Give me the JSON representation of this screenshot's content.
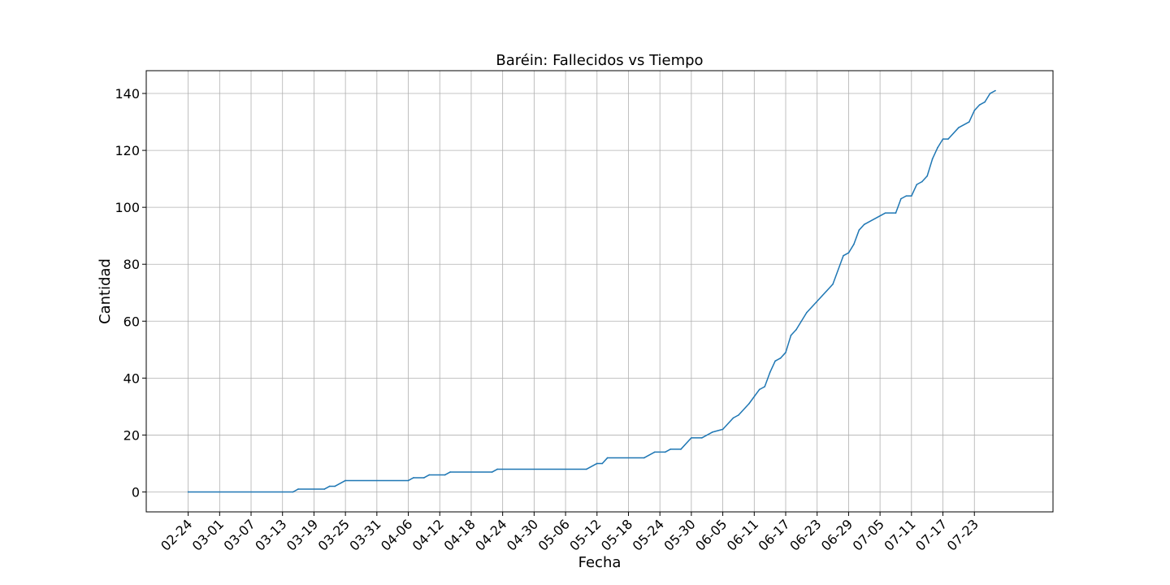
{
  "chart_data": {
    "type": "line",
    "title": "Baréin: Fallecidos vs Tiempo",
    "xlabel": "Fecha",
    "ylabel": "Cantidad",
    "grid": true,
    "xlim": [
      "2020-02-16",
      "2020-08-07"
    ],
    "ylim": [
      -7,
      148
    ],
    "x_ticks": [
      "02-24",
      "03-01",
      "03-07",
      "03-13",
      "03-19",
      "03-25",
      "03-31",
      "04-06",
      "04-12",
      "04-18",
      "04-24",
      "04-30",
      "05-06",
      "05-12",
      "05-18",
      "05-24",
      "05-30",
      "06-05",
      "06-11",
      "06-17",
      "06-23",
      "06-29",
      "07-05",
      "07-11",
      "07-17",
      "07-23"
    ],
    "x_tick_dates": [
      "2020-02-24",
      "2020-03-01",
      "2020-03-07",
      "2020-03-13",
      "2020-03-19",
      "2020-03-25",
      "2020-03-31",
      "2020-04-06",
      "2020-04-12",
      "2020-04-18",
      "2020-04-24",
      "2020-04-30",
      "2020-05-06",
      "2020-05-12",
      "2020-05-18",
      "2020-05-24",
      "2020-05-30",
      "2020-06-05",
      "2020-06-11",
      "2020-06-17",
      "2020-06-23",
      "2020-06-29",
      "2020-07-05",
      "2020-07-11",
      "2020-07-17",
      "2020-07-23"
    ],
    "y_ticks": [
      0,
      20,
      40,
      60,
      80,
      100,
      120,
      140
    ],
    "series": [
      {
        "color": "#1f77b4",
        "points": [
          [
            "2020-02-24",
            0
          ],
          [
            "2020-03-15",
            0
          ],
          [
            "2020-03-16",
            1
          ],
          [
            "2020-03-21",
            1
          ],
          [
            "2020-03-22",
            2
          ],
          [
            "2020-03-23",
            2
          ],
          [
            "2020-03-25",
            4
          ],
          [
            "2020-04-06",
            4
          ],
          [
            "2020-04-07",
            5
          ],
          [
            "2020-04-09",
            5
          ],
          [
            "2020-04-10",
            6
          ],
          [
            "2020-04-13",
            6
          ],
          [
            "2020-04-14",
            7
          ],
          [
            "2020-04-22",
            7
          ],
          [
            "2020-04-23",
            8
          ],
          [
            "2020-05-10",
            8
          ],
          [
            "2020-05-12",
            10
          ],
          [
            "2020-05-13",
            10
          ],
          [
            "2020-05-14",
            12
          ],
          [
            "2020-05-21",
            12
          ],
          [
            "2020-05-23",
            14
          ],
          [
            "2020-05-25",
            14
          ],
          [
            "2020-05-26",
            15
          ],
          [
            "2020-05-28",
            15
          ],
          [
            "2020-05-30",
            19
          ],
          [
            "2020-06-01",
            19
          ],
          [
            "2020-06-03",
            21
          ],
          [
            "2020-06-05",
            22
          ],
          [
            "2020-06-07",
            26
          ],
          [
            "2020-06-08",
            27
          ],
          [
            "2020-06-10",
            31
          ],
          [
            "2020-06-12",
            36
          ],
          [
            "2020-06-13",
            37
          ],
          [
            "2020-06-14",
            42
          ],
          [
            "2020-06-15",
            46
          ],
          [
            "2020-06-16",
            47
          ],
          [
            "2020-06-17",
            49
          ],
          [
            "2020-06-18",
            55
          ],
          [
            "2020-06-19",
            57
          ],
          [
            "2020-06-21",
            63
          ],
          [
            "2020-06-26",
            73
          ],
          [
            "2020-06-28",
            83
          ],
          [
            "2020-06-29",
            84
          ],
          [
            "2020-06-30",
            87
          ],
          [
            "2020-07-01",
            92
          ],
          [
            "2020-07-02",
            94
          ],
          [
            "2020-07-05",
            97
          ],
          [
            "2020-07-06",
            98
          ],
          [
            "2020-07-08",
            98
          ],
          [
            "2020-07-09",
            103
          ],
          [
            "2020-07-10",
            104
          ],
          [
            "2020-07-11",
            104
          ],
          [
            "2020-07-12",
            108
          ],
          [
            "2020-07-13",
            109
          ],
          [
            "2020-07-14",
            111
          ],
          [
            "2020-07-15",
            117
          ],
          [
            "2020-07-16",
            121
          ],
          [
            "2020-07-17",
            124
          ],
          [
            "2020-07-18",
            124
          ],
          [
            "2020-07-20",
            128
          ],
          [
            "2020-07-22",
            130
          ],
          [
            "2020-07-23",
            134
          ],
          [
            "2020-07-24",
            136
          ],
          [
            "2020-07-25",
            137
          ],
          [
            "2020-07-26",
            140
          ],
          [
            "2020-07-27",
            141
          ]
        ]
      }
    ]
  }
}
